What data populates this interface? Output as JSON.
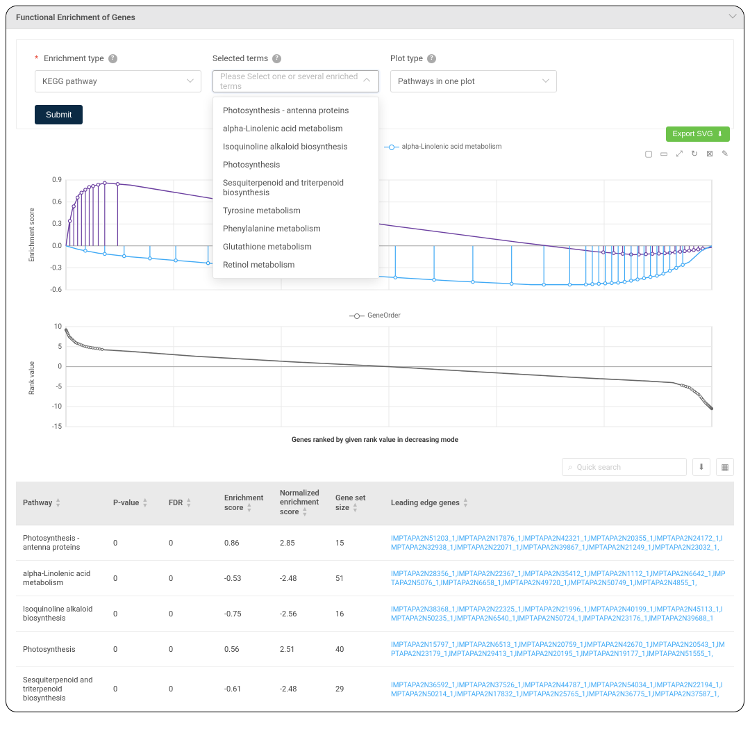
{
  "panel": {
    "title": "Functional Enrichment of Genes"
  },
  "form": {
    "enrichment": {
      "label": "Enrichment type",
      "required": true,
      "value": "KEGG pathway"
    },
    "terms": {
      "label": "Selected terms",
      "placeholder": "Please Select one or several enriched terms"
    },
    "plot": {
      "label": "Plot type",
      "value": "Pathways in one plot"
    },
    "submit": "Submit"
  },
  "dropdown": {
    "items": [
      "Photosynthesis - antenna proteins",
      "alpha-Linolenic acid metabolism",
      "Isoquinoline alkaloid biosynthesis",
      "Photosynthesis",
      "Sesquiterpenoid and triterpenoid biosynthesis",
      "Tyrosine metabolism",
      "Phenylalanine metabolism",
      "Glutathione metabolism",
      "Retinol metabolism"
    ]
  },
  "export": {
    "label": "Export SVG"
  },
  "chart1": {
    "legend": [
      {
        "label": "Photosynthesis - antenna proteins",
        "color": "#6b3fa0"
      },
      {
        "label": "alpha-Linolenic acid metabolism",
        "color": "#3fa9f5"
      }
    ],
    "ylabel": "Enrichment score",
    "yticks": [
      0.9,
      0.6,
      0.3,
      0.0,
      -0.3,
      -0.6
    ],
    "ylim": [
      -0.6,
      0.9
    ],
    "grid": {
      "color": "#e9e9e9"
    },
    "colors": {
      "purple": "#6b3fa0",
      "blue": "#3fa9f5",
      "axis": "#888"
    },
    "purple_env": [
      [
        0,
        0.0
      ],
      [
        0.005,
        0.3
      ],
      [
        0.01,
        0.5
      ],
      [
        0.02,
        0.7
      ],
      [
        0.035,
        0.8
      ],
      [
        0.06,
        0.86
      ],
      [
        0.1,
        0.83
      ],
      [
        0.3,
        0.54
      ],
      [
        0.5,
        0.28
      ],
      [
        0.7,
        0.05
      ],
      [
        0.82,
        -0.08
      ],
      [
        0.88,
        -0.12
      ],
      [
        0.93,
        -0.1
      ],
      [
        0.97,
        -0.06
      ],
      [
        1.0,
        -0.02
      ]
    ],
    "purple_spikes_x": [
      0.006,
      0.012,
      0.018,
      0.024,
      0.03,
      0.036,
      0.042,
      0.05,
      0.06,
      0.08,
      0.832,
      0.848,
      0.862,
      0.875,
      0.887,
      0.898,
      0.908,
      0.918,
      0.927,
      0.935,
      0.943,
      0.951,
      0.958,
      0.965,
      0.972,
      0.979,
      0.986
    ],
    "blue_env": [
      [
        0,
        0.0
      ],
      [
        0.02,
        -0.05
      ],
      [
        0.05,
        -0.1
      ],
      [
        0.1,
        -0.15
      ],
      [
        0.2,
        -0.22
      ],
      [
        0.3,
        -0.3
      ],
      [
        0.45,
        -0.4
      ],
      [
        0.6,
        -0.48
      ],
      [
        0.72,
        -0.53
      ],
      [
        0.8,
        -0.53
      ],
      [
        0.86,
        -0.5
      ],
      [
        0.92,
        -0.4
      ],
      [
        0.965,
        -0.22
      ],
      [
        0.985,
        -0.06
      ],
      [
        1.0,
        0.0
      ]
    ],
    "blue_spikes_x": [
      0.03,
      0.06,
      0.09,
      0.13,
      0.17,
      0.22,
      0.27,
      0.33,
      0.39,
      0.45,
      0.51,
      0.57,
      0.63,
      0.69,
      0.74,
      0.78,
      0.805,
      0.815,
      0.825,
      0.835,
      0.845,
      0.855,
      0.865,
      0.875,
      0.885,
      0.895,
      0.905,
      0.915,
      0.925,
      0.935,
      0.945,
      0.955
    ]
  },
  "chart2": {
    "legend_label": "GeneOrder",
    "ylabel": "Rank value",
    "xlabel": "Genes ranked by given rank value in decreasing mode",
    "yticks": [
      10,
      5,
      0,
      -5,
      -10,
      -15
    ],
    "ylim": [
      -15,
      10
    ],
    "color": "#666666",
    "curve": [
      [
        0,
        9.2
      ],
      [
        0.005,
        7.5
      ],
      [
        0.015,
        6.0
      ],
      [
        0.03,
        5.0
      ],
      [
        0.06,
        4.2
      ],
      [
        0.1,
        3.8
      ],
      [
        0.2,
        2.6
      ],
      [
        0.35,
        1.2
      ],
      [
        0.5,
        0.0
      ],
      [
        0.65,
        -1.4
      ],
      [
        0.8,
        -2.8
      ],
      [
        0.9,
        -3.6
      ],
      [
        0.94,
        -4.0
      ],
      [
        0.965,
        -5.2
      ],
      [
        0.98,
        -7.0
      ],
      [
        0.99,
        -9.0
      ],
      [
        1.0,
        -10.5
      ]
    ]
  },
  "table": {
    "search_placeholder": "Quick search",
    "columns": [
      "Pathway",
      "P-value",
      "FDR",
      "Enrichment score",
      "Normalized enrichment score",
      "Gene set size",
      "Leading edge genes"
    ],
    "rows": [
      {
        "pathway": "Photosynthesis - antenna proteins",
        "pvalue": "0",
        "fdr": "0",
        "es": "0.86",
        "nes": "2.85",
        "size": "15",
        "genes": "IMPTAPA2N51203_1,IMPTAPA2N17876_1,IMPTAPA2N42321_1,IMPTAPA2N20355_1,IMPTAPA2N24172_1,IMPTAPA2N32938_1,IMPTAPA2N22071_1,IMPTAPA2N39867_1,IMPTAPA2N21249_1,IMPTAPA2N23032_1,"
      },
      {
        "pathway": "alpha-Linolenic acid metabolism",
        "pvalue": "0",
        "fdr": "0",
        "es": "-0.53",
        "nes": "-2.48",
        "size": "51",
        "genes": "IMPTAPA2N28356_1,IMPTAPA2N22367_1,IMPTAPA2N35412_1,IMPTAPA2N1112_1,IMPTAPA2N6642_1,IMPTAPA2N5076_1,IMPTAPA2N6658_1,IMPTAPA2N49720_1,IMPTAPA2N50749_1,IMPTAPA2N4855_1,"
      },
      {
        "pathway": "Isoquinoline alkaloid biosynthesis",
        "pvalue": "0",
        "fdr": "0",
        "es": "-0.75",
        "nes": "-2.56",
        "size": "16",
        "genes": "IMPTAPA2N38368_1,IMPTAPA2N22325_1,IMPTAPA2N21996_1,IMPTAPA2N40199_1,IMPTAPA2N45113_1,IMPTAPA2N50235_1,IMPTAPA2N6540_1,IMPTAPA2N50724_1,IMPTAPA2N23176_1,IMPTAPA2N39688_1"
      },
      {
        "pathway": "Photosynthesis",
        "pvalue": "0",
        "fdr": "0",
        "es": "0.56",
        "nes": "2.51",
        "size": "40",
        "genes": "IMPTAPA2N15797_1,IMPTAPA2N6513_1,IMPTAPA2N20759_1,IMPTAPA2N42670_1,IMPTAPA2N20543_1,IMPTAPA2N23179_1,IMPTAPA2N29413_1,IMPTAPA2N20195_1,IMPTAPA2N19177_1,IMPTAPA2N51555_1,"
      },
      {
        "pathway": "Sesquiterpenoid and triterpenoid biosynthesis",
        "pvalue": "0",
        "fdr": "0",
        "es": "-0.61",
        "nes": "-2.48",
        "size": "29",
        "genes": "IMPTAPA2N36592_1,IMPTAPA2N37526_1,IMPTAPA2N44787_1,IMPTAPA2N54034_1,IMPTAPA2N22194_1,IMPTAPA2N50214_1,IMPTAPA2N17832_1,IMPTAPA2N25765_1,IMPTAPA2N36775_1,IMPTAPA2N37587_1,"
      }
    ]
  }
}
